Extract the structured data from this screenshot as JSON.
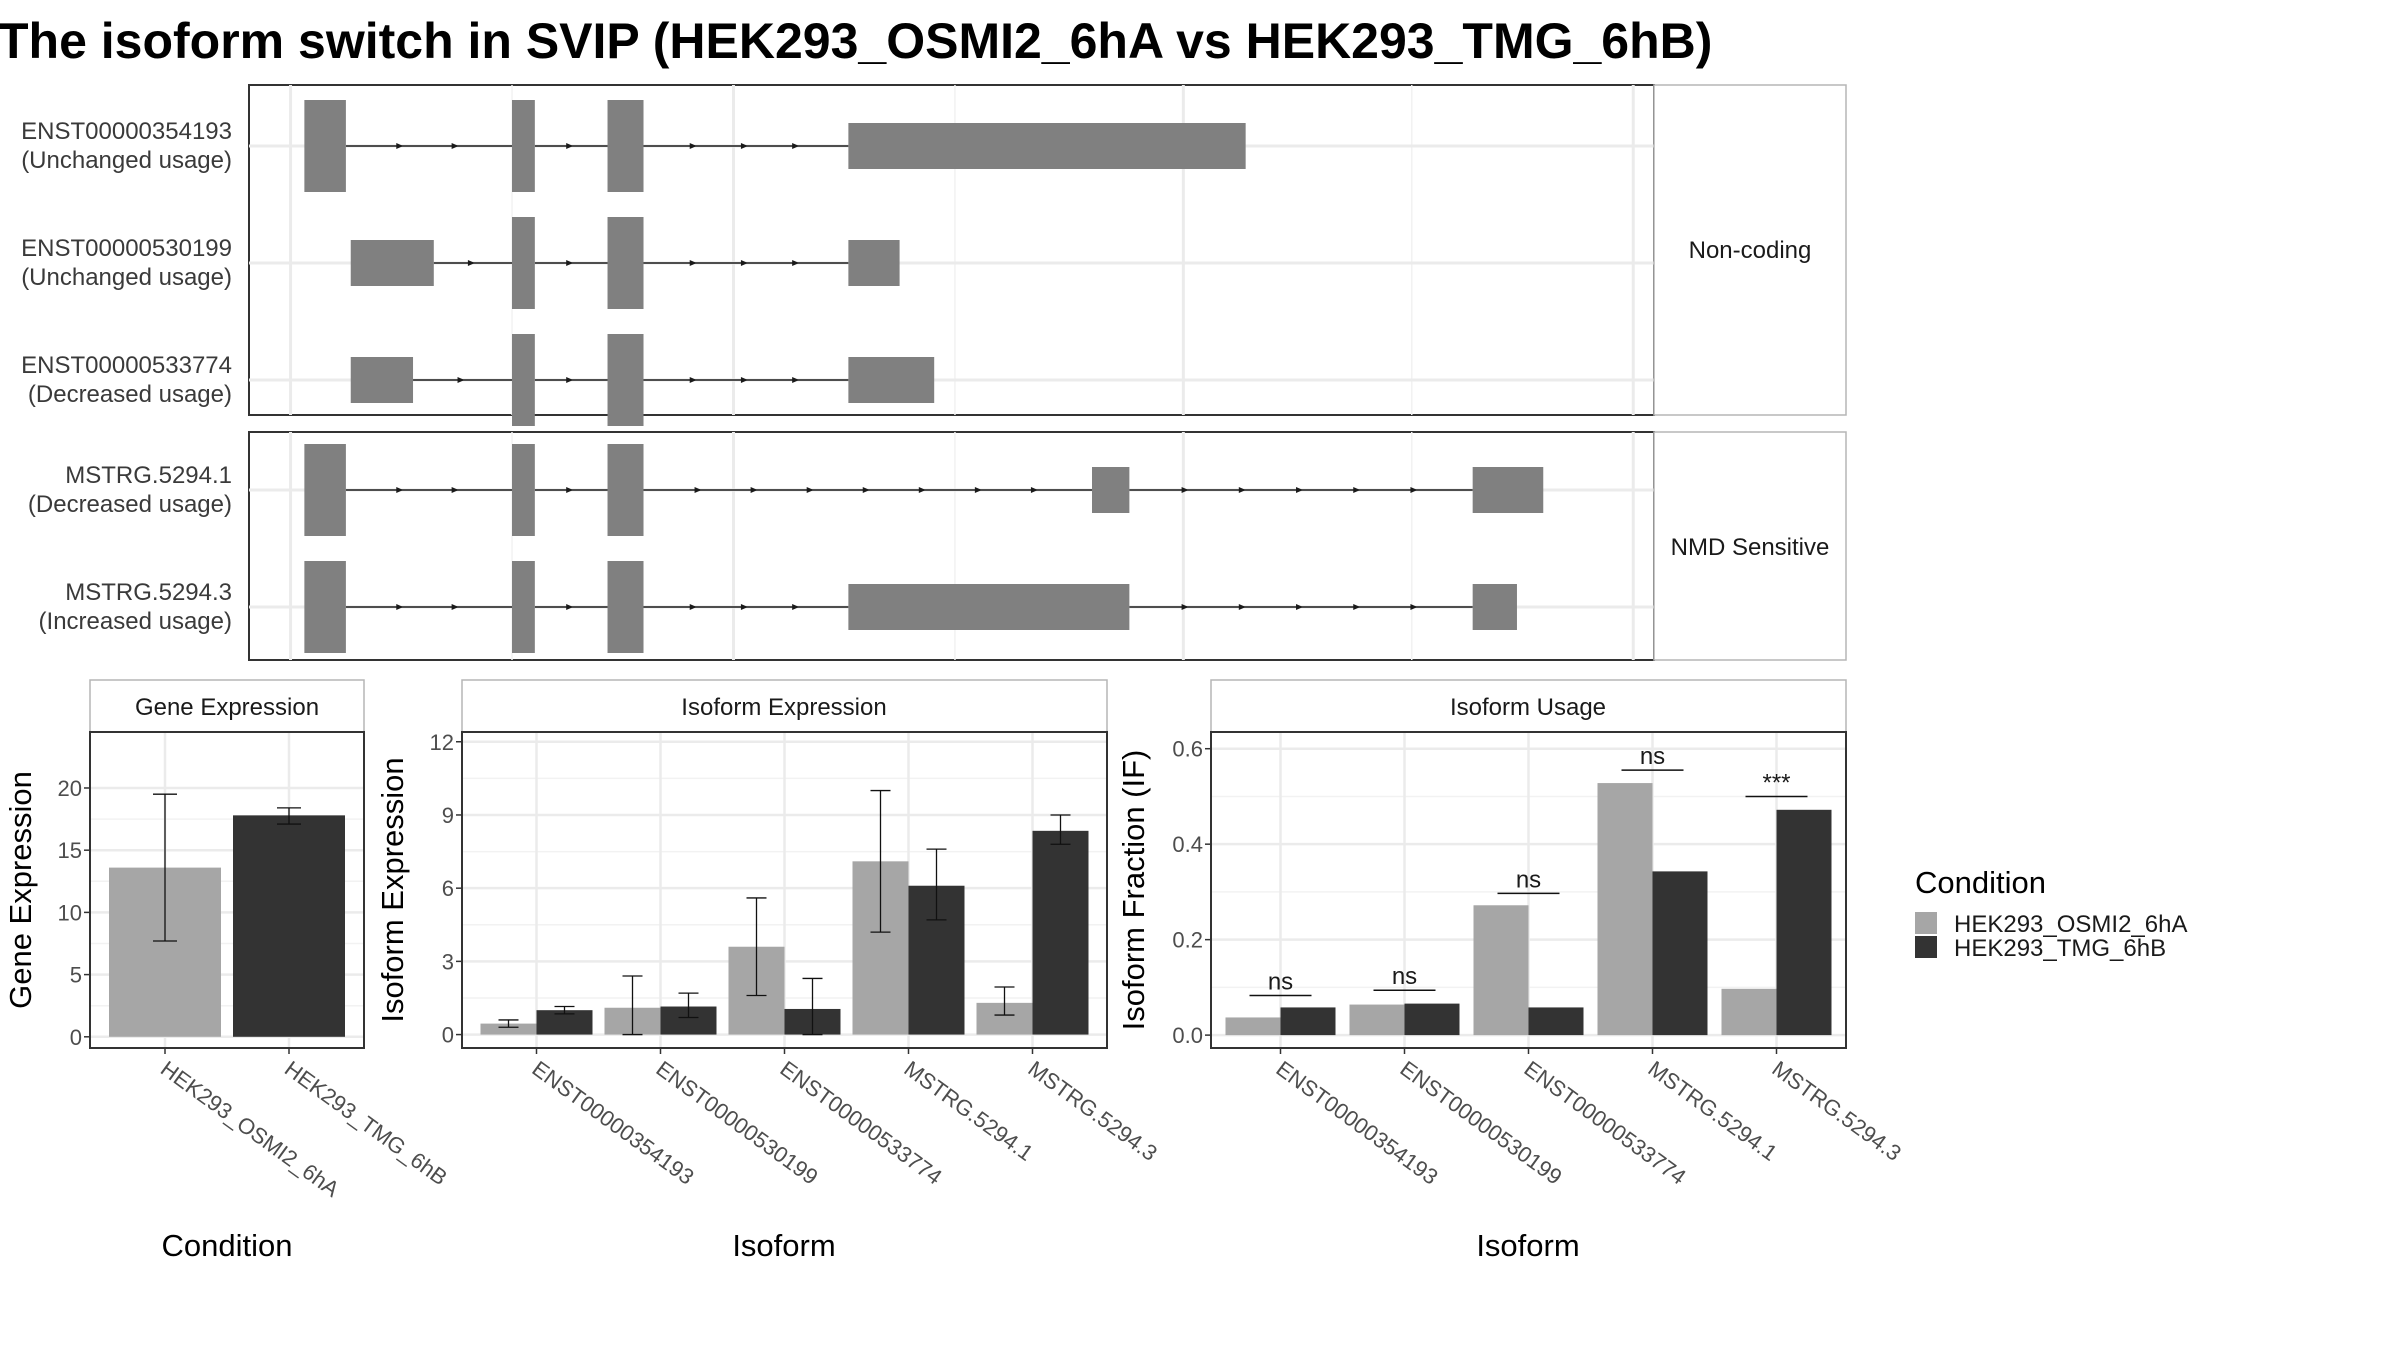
{
  "title": "The isoform switch in SVIP (HEK293_OSMI2_6hA vs HEK293_TMG_6hB)",
  "colors": {
    "cond1": "#a6a6a6",
    "cond2": "#333333",
    "exon": "#808080",
    "intron": "#1a1a1a",
    "grid": "#ebebeb",
    "frame": "#333333"
  },
  "transcript_panels": [
    {
      "strip": "Non-coding",
      "transcripts": [
        {
          "id": "ENST00000354193",
          "usage": "(Unchanged usage)",
          "exons": [
            [
              0.08,
              0.14,
              "t"
            ],
            [
              0.38,
              0.413,
              "t"
            ],
            [
              0.518,
              0.57,
              "t"
            ],
            [
              0.866,
              1.44,
              "s"
            ]
          ]
        },
        {
          "id": "ENST00000530199",
          "usage": "(Unchanged usage)",
          "exons": [
            [
              0.147,
              0.267,
              "s"
            ],
            [
              0.38,
              0.413,
              "t"
            ],
            [
              0.518,
              0.57,
              "t"
            ],
            [
              0.866,
              0.94,
              "s"
            ]
          ]
        },
        {
          "id": "ENST00000533774",
          "usage": "(Decreased usage)",
          "exons": [
            [
              0.147,
              0.237,
              "s"
            ],
            [
              0.38,
              0.413,
              "t"
            ],
            [
              0.518,
              0.57,
              "t"
            ],
            [
              0.866,
              0.99,
              "s"
            ]
          ]
        }
      ]
    },
    {
      "strip": "NMD Sensitive",
      "transcripts": [
        {
          "id": "MSTRG.5294.1",
          "usage": "(Decreased usage)",
          "exons": [
            [
              0.08,
              0.14,
              "t"
            ],
            [
              0.38,
              0.413,
              "t"
            ],
            [
              0.518,
              0.57,
              "t"
            ],
            [
              1.218,
              1.272,
              "s"
            ],
            [
              1.768,
              1.87,
              "s"
            ]
          ]
        },
        {
          "id": "MSTRG.5294.3",
          "usage": "(Increased usage)",
          "exons": [
            [
              0.08,
              0.14,
              "t"
            ],
            [
              0.38,
              0.413,
              "t"
            ],
            [
              0.518,
              0.57,
              "t"
            ],
            [
              0.866,
              1.272,
              "s"
            ],
            [
              1.768,
              1.832,
              "s"
            ]
          ]
        }
      ]
    }
  ],
  "chart_data": [
    {
      "type": "bar",
      "strip": "Gene Expression",
      "xlabel": "Condition",
      "ylabel": "Gene Expression",
      "ylim": [
        -0.9,
        24.5
      ],
      "yticks": [
        0,
        5,
        10,
        15,
        20
      ],
      "categories": [
        "HEK293_OSMI2_6hA",
        "HEK293_TMG_6hB"
      ],
      "values": [
        13.6,
        17.8
      ],
      "errors": [
        [
          7.7,
          19.5
        ],
        [
          17.1,
          18.4
        ]
      ]
    },
    {
      "type": "bar",
      "strip": "Isoform Expression",
      "xlabel": "Isoform",
      "ylabel": "Isoform Expression",
      "ylim": [
        -0.55,
        12.4
      ],
      "yticks": [
        0,
        3,
        6,
        9,
        12
      ],
      "categories": [
        "ENST00000354193",
        "ENST00000530199",
        "ENST00000533774",
        "MSTRG.5294.1",
        "MSTRG.5294.3"
      ],
      "series": [
        {
          "name": "HEK293_OSMI2_6hA",
          "values": [
            0.45,
            1.1,
            3.6,
            7.1,
            1.3
          ],
          "errors": [
            [
              0.3,
              0.6
            ],
            [
              0.0,
              2.4
            ],
            [
              1.6,
              5.6
            ],
            [
              4.2,
              10.0
            ],
            [
              0.8,
              1.95
            ]
          ]
        },
        {
          "name": "HEK293_TMG_6hB",
          "values": [
            1.0,
            1.15,
            1.05,
            6.1,
            8.35
          ],
          "errors": [
            [
              0.85,
              1.15
            ],
            [
              0.7,
              1.7
            ],
            [
              0.0,
              2.3
            ],
            [
              4.7,
              7.6
            ],
            [
              7.8,
              9.0
            ]
          ]
        }
      ]
    },
    {
      "type": "bar",
      "strip": "Isoform Usage",
      "xlabel": "Isoform",
      "ylabel": "Isoform Fraction (IF)",
      "ylim": [
        -0.027,
        0.635
      ],
      "yticks": [
        0.0,
        0.2,
        0.4,
        0.6
      ],
      "ytick_labels": [
        "0.0",
        "0.2",
        "0.4",
        "0.6"
      ],
      "categories": [
        "ENST00000354193",
        "ENST00000530199",
        "ENST00000533774",
        "MSTRG.5294.1",
        "MSTRG.5294.3"
      ],
      "series": [
        {
          "name": "HEK293_OSMI2_6hA",
          "values": [
            0.037,
            0.064,
            0.272,
            0.528,
            0.097
          ]
        },
        {
          "name": "HEK293_TMG_6hB",
          "values": [
            0.058,
            0.066,
            0.058,
            0.343,
            0.472
          ]
        }
      ],
      "significance": [
        "ns",
        "ns",
        "ns",
        "ns",
        "***"
      ],
      "significance_y": [
        0.083,
        0.094,
        0.297,
        0.555,
        0.5
      ]
    }
  ],
  "legend": {
    "title": "Condition",
    "placement": "right",
    "items": [
      {
        "label": "HEK293_OSMI2_6hA",
        "color": "#a6a6a6"
      },
      {
        "label": "HEK293_TMG_6hB",
        "color": "#333333"
      }
    ]
  }
}
